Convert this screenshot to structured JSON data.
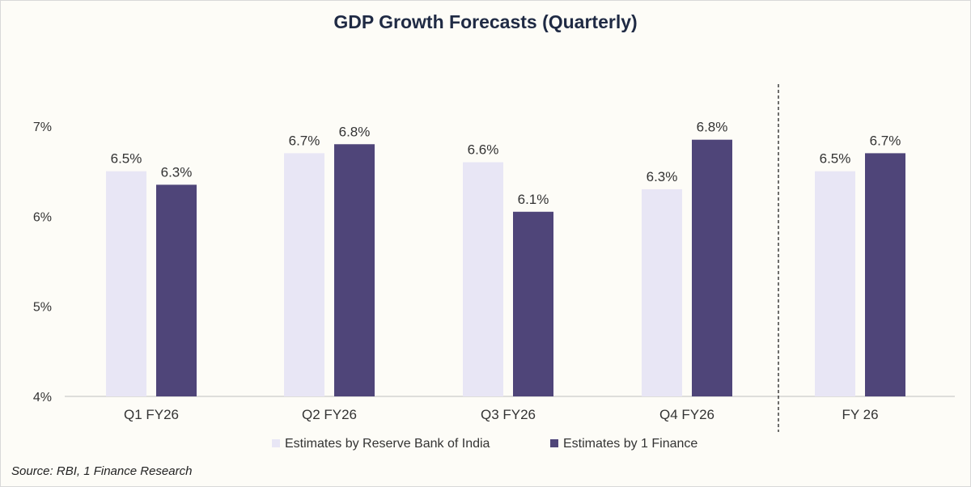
{
  "title": "GDP Growth Forecasts (Quarterly)",
  "source": "Source: RBI, 1 Finance Research",
  "chart_data": {
    "type": "bar",
    "title": "GDP Growth Forecasts (Quarterly)",
    "categories": [
      "Q1 FY26",
      "Q2 FY26",
      "Q3 FY26",
      "Q4 FY26",
      "FY 26"
    ],
    "series": [
      {
        "name": "Estimates by Reserve Bank of India",
        "color": "#e8e6f5",
        "values": [
          6.5,
          6.7,
          6.6,
          6.3,
          6.5
        ],
        "labels": [
          "6.5%",
          "6.7%",
          "6.6%",
          "6.3%",
          "6.5%"
        ]
      },
      {
        "name": "Estimates by 1 Finance",
        "color": "#4f4579",
        "values": [
          6.35,
          6.8,
          6.05,
          6.85,
          6.7
        ],
        "labels": [
          "6.3%",
          "6.8%",
          "6.1%",
          "6.8%",
          "6.7%"
        ]
      }
    ],
    "yticks": [
      4,
      5,
      6,
      7
    ],
    "ytick_labels": [
      "4%",
      "5%",
      "6%",
      "7%"
    ],
    "ylim": [
      4,
      7
    ],
    "grid": false,
    "legend": "bottom-center",
    "separator_before_category": 4
  }
}
